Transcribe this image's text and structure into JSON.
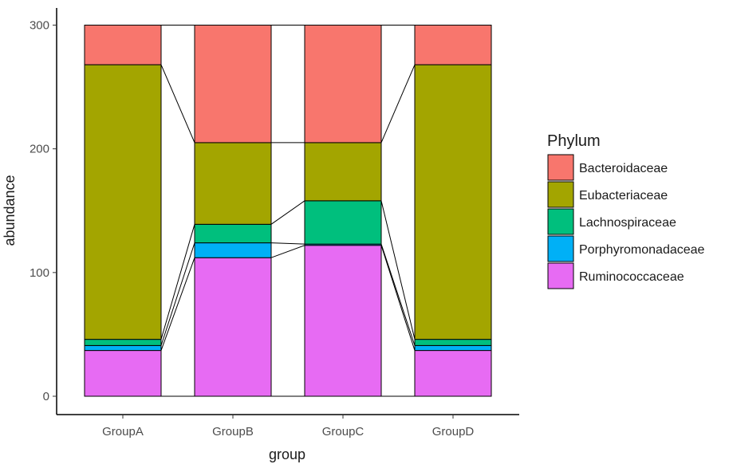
{
  "chart_data": {
    "type": "bar",
    "stacked": true,
    "title": "",
    "xlabel": "group",
    "ylabel": "abundance",
    "categories": [
      "GroupA",
      "GroupB",
      "GroupC",
      "GroupD"
    ],
    "ylim": [
      0,
      300
    ],
    "y_ticks": [
      "0",
      "100",
      "200",
      "300"
    ],
    "grid": false,
    "legend_title": "Phylum",
    "legend_position": "right",
    "connecting_lines": true,
    "series": [
      {
        "name": "Bacteroidaceae",
        "color": "#F8766D",
        "values": [
          32,
          95,
          95,
          32
        ]
      },
      {
        "name": "Eubacteriaceae",
        "color": "#A3A500",
        "values": [
          222,
          66,
          47,
          222
        ]
      },
      {
        "name": "Lachnospiraceae",
        "color": "#00BF7D",
        "values": [
          5,
          15,
          35,
          5
        ]
      },
      {
        "name": "Porphyromonadaceae",
        "color": "#00B0F6",
        "values": [
          4,
          12,
          1,
          4
        ]
      },
      {
        "name": "Ruminococcaceae",
        "color": "#E76BF3",
        "values": [
          37,
          112,
          122,
          37
        ]
      }
    ]
  }
}
